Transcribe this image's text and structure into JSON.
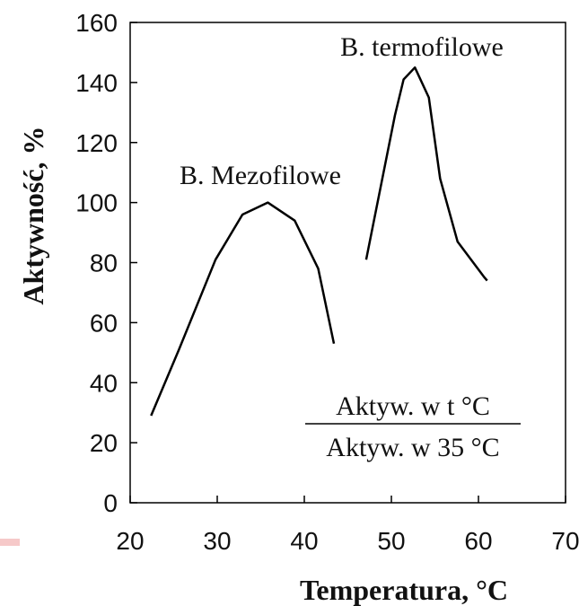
{
  "chart_data": {
    "type": "line",
    "x_label": "Temperatura, °C",
    "y_label": "Aktywność, %",
    "xlim": [
      20,
      70
    ],
    "xticks": [
      20,
      30,
      40,
      50,
      60,
      70
    ],
    "ylim": [
      0,
      160
    ],
    "yticks": [
      0,
      20,
      40,
      60,
      80,
      100,
      120,
      140,
      160
    ],
    "series": [
      {
        "name": "B. Mezofilowe",
        "color": "#000000",
        "x": [
          22.4,
          25.6,
          29.8,
          32.9,
          35.8,
          38.9,
          41.6,
          43.4
        ],
        "values": [
          29,
          51,
          81,
          96,
          100,
          94,
          78,
          53
        ]
      },
      {
        "name": "B. termofilowe",
        "color": "#000000",
        "x": [
          47.1,
          50.4,
          51.4,
          52.7,
          54.3,
          55.6,
          57.6,
          60.7,
          61.0
        ],
        "values": [
          81,
          129,
          141,
          145,
          135,
          108,
          87,
          75,
          74
        ]
      }
    ],
    "annotations": {
      "numerator": "Aktyw. w t °C",
      "denominator": "Aktyw. w 35 °C"
    }
  }
}
